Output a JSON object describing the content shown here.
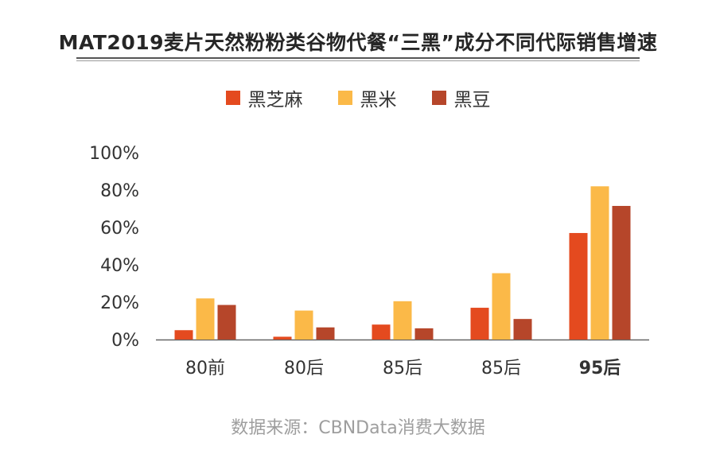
{
  "title": "MAT2019麦片天然粉粉类谷物代餐“三黑”成分不同代际销售增速",
  "source": "数据来源：CBNData消费大数据",
  "colors": {
    "series": [
      "#e44a1f",
      "#fbb948",
      "#b6462a"
    ],
    "axis": "#666666",
    "text": "#333333"
  },
  "chart_data": {
    "type": "bar",
    "categories": [
      "80前",
      "80后",
      "85后",
      "85后",
      "95后"
    ],
    "series": [
      {
        "name": "黑芝麻",
        "values": [
          5,
          1.5,
          8,
          17,
          57
        ]
      },
      {
        "name": "黑米",
        "values": [
          22,
          15.5,
          20.5,
          35.5,
          82
        ]
      },
      {
        "name": "黑豆",
        "values": [
          18.5,
          6.5,
          6,
          11,
          71.5
        ]
      }
    ],
    "y_ticks": [
      "0%",
      "20%",
      "40%",
      "60%",
      "80%",
      "100%"
    ],
    "ylim": [
      0,
      100
    ],
    "legend_position": "top",
    "grid": false,
    "bold_category_index": 4
  }
}
